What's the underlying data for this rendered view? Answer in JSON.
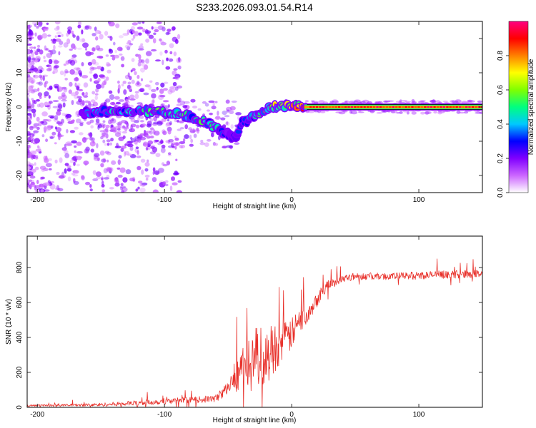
{
  "figure_title": "S233.2026.093.01.54.R14",
  "chart_data": [
    {
      "type": "heatmap",
      "title": "S233.2026.093.01.54.R14",
      "xlabel": "Height of straight line (km)",
      "ylabel": "Frequency (Hz)",
      "xlim": [
        -208,
        150
      ],
      "ylim": [
        -25,
        25
      ],
      "x_ticks": [
        -200,
        -100,
        0,
        100
      ],
      "x_tick_labels": [
        "-200",
        "-100",
        "0",
        "100"
      ],
      "y_ticks": [
        -20,
        -10,
        0,
        10,
        20
      ],
      "y_tick_labels": [
        "-20",
        "-10",
        "0",
        "10",
        "20"
      ],
      "colorbar": {
        "label": "Normalized spectral amplitude",
        "range": [
          0,
          1
        ],
        "ticks": [
          0,
          0.2,
          0.4,
          0.6,
          0.8
        ],
        "tick_labels": [
          "0.0",
          "0.2",
          "0.4",
          "0.6",
          "0.8"
        ],
        "colormap": [
          "#ffffff",
          "#cc66ff",
          "#8000ff",
          "#0000ff",
          "#00c8ff",
          "#00ff80",
          "#80ff00",
          "#ffff00",
          "#ff8000",
          "#ff0000",
          "#ff0080"
        ]
      },
      "signal_trace": {
        "description": "carrier line",
        "x": [
          -165,
          -150,
          -140,
          -130,
          -120,
          -110,
          -100,
          -90,
          -80,
          -70,
          -60,
          -55,
          -50,
          -45,
          -40,
          -35,
          -30,
          -25,
          -20,
          -15,
          -10,
          -5,
          0,
          5,
          10,
          20,
          40,
          60,
          80,
          100,
          120,
          150
        ],
        "freq": [
          -2,
          -1.5,
          -1.2,
          -1.5,
          -1.3,
          -1.2,
          -1.5,
          -2,
          -3,
          -4,
          -6,
          -7,
          -8,
          -9,
          -5,
          -4,
          -3,
          -2,
          -1,
          0,
          0.5,
          0.5,
          0.5,
          0.5,
          0,
          0,
          0,
          0,
          0,
          0,
          0,
          0
        ],
        "amplitude": [
          0.3,
          0.4,
          0.45,
          0.4,
          0.45,
          0.5,
          0.45,
          0.45,
          0.5,
          0.5,
          0.45,
          0.35,
          0.3,
          0.3,
          0.3,
          0.35,
          0.4,
          0.5,
          0.55,
          0.6,
          0.65,
          0.7,
          0.75,
          0.8,
          0.95,
          0.9,
          0.85,
          0.85,
          0.9,
          0.9,
          0.85,
          0.85
        ]
      }
    },
    {
      "type": "line",
      "xlabel": "Height of straight line (km)",
      "ylabel": "SNR (10 * v/v)",
      "xlim": [
        -208,
        150
      ],
      "ylim": [
        0,
        980
      ],
      "x_ticks": [
        -200,
        -100,
        0,
        100
      ],
      "x_tick_labels": [
        "-200",
        "-100",
        "0",
        "100"
      ],
      "y_ticks": [
        0,
        200,
        400,
        600,
        800
      ],
      "y_tick_labels": [
        "0",
        "200",
        "400",
        "600",
        "800"
      ],
      "series": [
        {
          "name": "SNR",
          "color": "#e8302a",
          "x": [
            -208,
            -180,
            -150,
            -120,
            -100,
            -80,
            -60,
            -50,
            -45,
            -40,
            -35,
            -30,
            -25,
            -20,
            -15,
            -10,
            -5,
            0,
            5,
            10,
            15,
            20,
            25,
            30,
            35,
            40,
            50,
            60,
            80,
            100,
            120,
            150
          ],
          "y": [
            10,
            12,
            15,
            25,
            35,
            40,
            50,
            110,
            170,
            220,
            260,
            300,
            300,
            270,
            340,
            360,
            380,
            420,
            480,
            520,
            570,
            620,
            680,
            700,
            720,
            740,
            750,
            750,
            750,
            755,
            760,
            765
          ],
          "spread": [
            10,
            12,
            20,
            30,
            35,
            35,
            40,
            80,
            180,
            220,
            280,
            320,
            340,
            330,
            300,
            260,
            220,
            180,
            150,
            130,
            110,
            90,
            70,
            60,
            50,
            45,
            40,
            40,
            40,
            45,
            45,
            45
          ]
        }
      ]
    }
  ]
}
